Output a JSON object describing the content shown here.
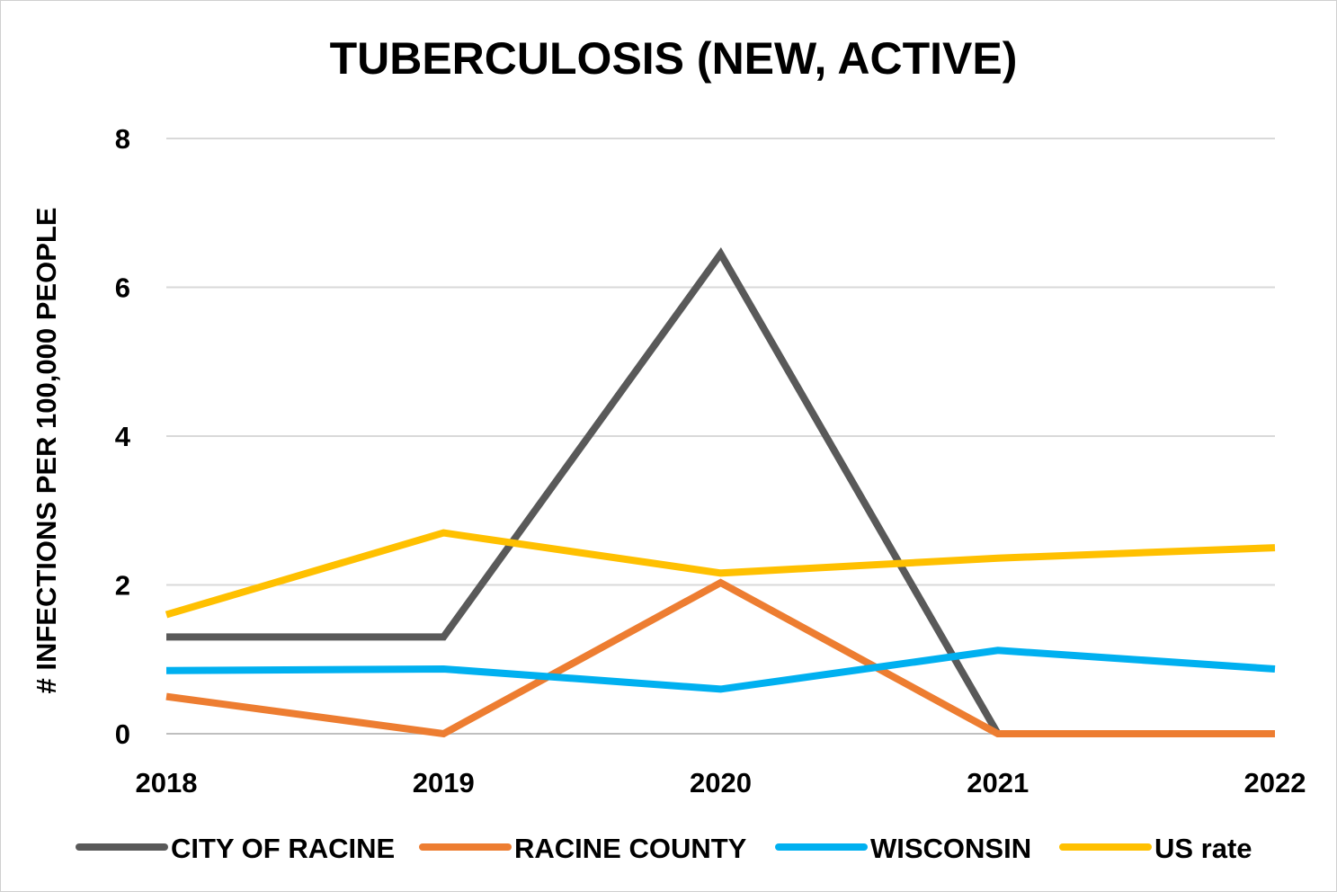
{
  "chart_data": {
    "type": "line",
    "title": "TUBERCULOSIS (NEW, ACTIVE)",
    "ylabel": "# INFECTIONS PER 100,000 PEOPLE",
    "xlabel": "",
    "categories": [
      "2018",
      "2019",
      "2020",
      "2021",
      "2022"
    ],
    "yticks": [
      "0",
      "2",
      "4",
      "6",
      "8"
    ],
    "ylim": [
      0,
      8
    ],
    "grid": true,
    "legend_position": "bottom",
    "series": [
      {
        "name": "CITY OF RACINE",
        "color": "#595959",
        "values": [
          1.3,
          1.3,
          6.45,
          0,
          null
        ]
      },
      {
        "name": "RACINE COUNTY",
        "color": "#ed7d31",
        "values": [
          0.5,
          0,
          2.03,
          0,
          0
        ]
      },
      {
        "name": "WISCONSIN",
        "color": "#00b0f0",
        "values": [
          0.85,
          0.87,
          0.6,
          1.12,
          0.87
        ]
      },
      {
        "name": "US rate",
        "color": "#ffc000",
        "values": [
          1.6,
          2.7,
          2.16,
          2.36,
          2.5
        ]
      }
    ]
  }
}
